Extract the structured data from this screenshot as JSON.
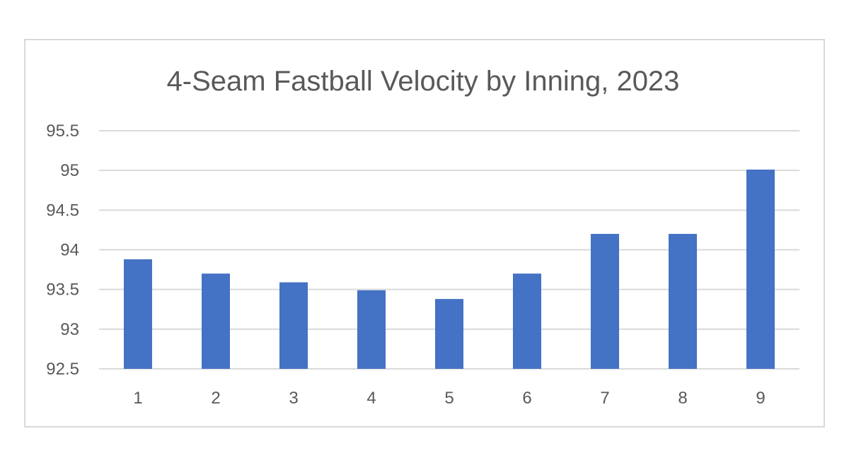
{
  "chart_data": {
    "type": "bar",
    "title": "4-Seam Fastball Velocity by Inning, 2023",
    "xlabel": "",
    "ylabel": "",
    "categories": [
      "1",
      "2",
      "3",
      "4",
      "5",
      "6",
      "7",
      "8",
      "9"
    ],
    "values": [
      93.88,
      93.7,
      93.59,
      93.49,
      93.38,
      93.7,
      94.2,
      94.2,
      95.01
    ],
    "ylim": [
      92.5,
      95.5
    ],
    "yticks": [
      "92.5",
      "93",
      "93.5",
      "94",
      "94.5",
      "95",
      "95.5"
    ],
    "grid": true,
    "legend": "none",
    "bar_color": "#4472C4"
  }
}
